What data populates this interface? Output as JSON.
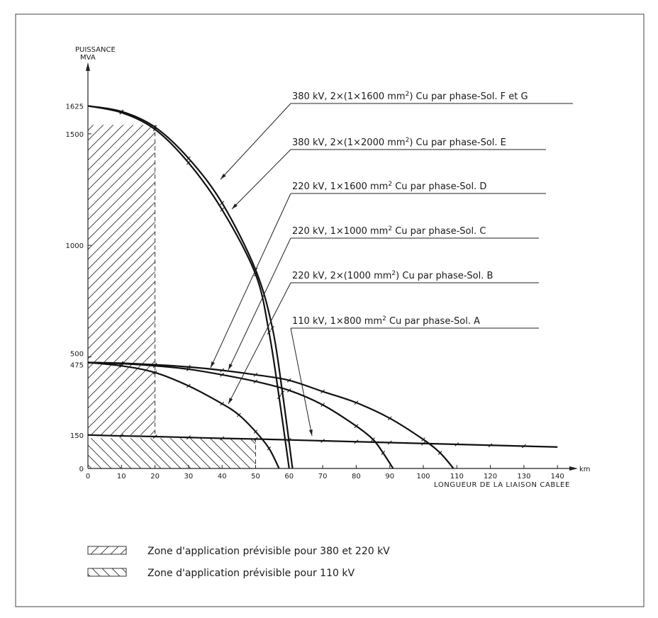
{
  "chart_data": {
    "type": "line",
    "title": "",
    "ylabel": "PUISSANCE\nMVA",
    "ylabel_lines": [
      "PUISSANCE",
      "MVA"
    ],
    "xlabel": "LONGUEUR DE LA LIAISON CABLEE",
    "x_unit": "km",
    "xlim": [
      0,
      145
    ],
    "ylim": [
      0,
      1700
    ],
    "x_ticks": [
      "0",
      "10",
      "20",
      "30",
      "40",
      "50",
      "60",
      "70",
      "80",
      "90",
      "100",
      "110",
      "120",
      "130",
      "140"
    ],
    "x_tick_values": [
      0,
      10,
      20,
      30,
      40,
      50,
      60,
      70,
      80,
      90,
      100,
      110,
      120,
      130,
      140
    ],
    "y_ticks": [
      {
        "value": 0,
        "label": "0"
      },
      {
        "value": 150,
        "label": "150"
      },
      {
        "value": 475,
        "label": "475"
      },
      {
        "value": 500,
        "label": "500"
      },
      {
        "value": 1000,
        "label": "1000"
      },
      {
        "value": 1500,
        "label": "1500"
      },
      {
        "value": 1625,
        "label": "1625"
      }
    ],
    "grid": false,
    "series": [
      {
        "name": "380 kV, 2×(1×1600 mm²) Cu par phase-Sol. F et G",
        "label_main": "380 kV, 2×(1×1600 mm",
        "label_sup": "2",
        "label_tail": ") Cu par phase-Sol. F et G",
        "x": [
          0,
          10,
          20,
          30,
          40,
          50,
          55,
          58,
          61
        ],
        "y": [
          1625,
          1600,
          1530,
          1390,
          1190,
          890,
          630,
          340,
          0
        ]
      },
      {
        "name": "380 kV, 2×(1×2000 mm²) Cu par phase-Sol. E",
        "label_main": "380 kV, 2×(1×2000 mm",
        "label_sup": "2",
        "label_tail": ") Cu par phase-Sol. E",
        "x": [
          0,
          10,
          20,
          30,
          40,
          50,
          54,
          57,
          60
        ],
        "y": [
          1625,
          1595,
          1520,
          1370,
          1160,
          870,
          610,
          320,
          0
        ]
      },
      {
        "name": "220 kV, 1×1600 mm² Cu par phase-Sol. D",
        "label_main": "220 kV, 1×1600 mm",
        "label_sup": "2",
        "label_tail": " Cu par phase-Sol. D",
        "x": [
          0,
          10,
          20,
          30,
          40,
          50,
          60,
          70,
          80,
          90,
          100,
          105,
          109
        ],
        "y": [
          475,
          472,
          465,
          455,
          440,
          420,
          395,
          345,
          295,
          225,
          130,
          70,
          0
        ]
      },
      {
        "name": "220 kV, 1×1000 mm² Cu par phase-Sol. C",
        "label_main": "220 kV, 1×1000 mm",
        "label_sup": "2",
        "label_tail": " Cu par phase-Sol. C",
        "x": [
          0,
          10,
          20,
          30,
          40,
          50,
          60,
          70,
          80,
          85,
          88,
          91
        ],
        "y": [
          475,
          470,
          460,
          445,
          420,
          390,
          350,
          285,
          190,
          130,
          70,
          0
        ]
      },
      {
        "name": "220 kV, 2×(1000 mm²) Cu par phase-Sol. B",
        "label_main": "220 kV, 2×(1000 mm",
        "label_sup": "2",
        "label_tail": ") Cu par phase-Sol. B",
        "x": [
          0,
          10,
          20,
          30,
          40,
          45,
          50,
          54,
          57
        ],
        "y": [
          475,
          460,
          430,
          370,
          290,
          240,
          165,
          90,
          0
        ]
      },
      {
        "name": "110 kV, 1×800 mm² Cu par phase-Sol. A",
        "label_main": "110 kV, 1×800 mm",
        "label_sup": "2",
        "label_tail": " Cu par phase-Sol. A",
        "x": [
          0,
          10,
          20,
          30,
          40,
          50,
          60,
          70,
          80,
          90,
          100,
          110,
          120,
          130,
          140
        ],
        "y": [
          150,
          146,
          143,
          139,
          135,
          132,
          128,
          124,
          120,
          116,
          112,
          108,
          104,
          100,
          96
        ]
      }
    ],
    "zones": [
      {
        "label": "Zone d'application prévisible pour 380 et 220 kV",
        "x_range": [
          0,
          20
        ],
        "y_range": [
          150,
          1540
        ],
        "hatch": "forward"
      },
      {
        "label": "Zone d'application prévisible pour 110 kV",
        "x_range": [
          0,
          50
        ],
        "y_range": [
          0,
          136
        ],
        "hatch": "backward"
      }
    ]
  }
}
